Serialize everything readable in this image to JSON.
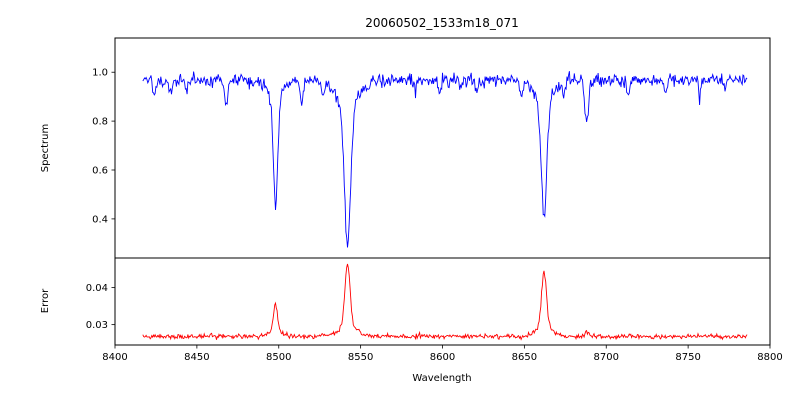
{
  "title": "20060502_1533m18_071",
  "axes": {
    "xlabel": "Wavelength",
    "spectrum_ylabel": "Spectrum",
    "error_ylabel": "Error"
  },
  "chart_data": {
    "type": "line",
    "title": "20060502_1533m18_071",
    "xlabel": "Wavelength",
    "xlim": [
      8400,
      8800
    ],
    "x_range_data": [
      8417,
      8786
    ],
    "step": 0.5,
    "seed": 20060502,
    "x_ticks": [
      8400,
      8450,
      8500,
      8550,
      8600,
      8650,
      8700,
      8750,
      8800
    ],
    "x_tick_labels": [
      "8400",
      "8450",
      "8500",
      "8550",
      "8600",
      "8650",
      "8700",
      "8750",
      "8800"
    ],
    "subplots": [
      {
        "name": "spectrum",
        "ylabel": "Spectrum",
        "color": "#0000ff",
        "ylim": [
          0.24,
          1.14
        ],
        "y_ticks": [
          0.4,
          0.6,
          0.8,
          1.0
        ],
        "y_tick_labels": [
          "0.4",
          "0.6",
          "0.8",
          "1.0"
        ],
        "continuum": 0.968,
        "noise_sigma": 0.013,
        "absorption_lines": [
          [
            8424,
            0.07,
            0.9
          ],
          [
            8434,
            0.05,
            0.8
          ],
          [
            8444,
            0.04,
            0.7
          ],
          [
            8468,
            0.09,
            0.9
          ],
          [
            8514,
            0.1,
            1.0
          ],
          [
            8527,
            0.05,
            0.8
          ],
          [
            8583,
            0.05,
            0.9
          ],
          [
            8598,
            0.05,
            0.8
          ],
          [
            8611,
            0.04,
            0.8
          ],
          [
            8621,
            0.05,
            0.8
          ],
          [
            8648,
            0.06,
            0.9
          ],
          [
            8674,
            0.05,
            0.8
          ],
          [
            8713,
            0.05,
            0.9
          ],
          [
            8736,
            0.05,
            0.8
          ],
          [
            8757,
            0.06,
            0.9
          ],
          [
            8772,
            0.04,
            0.8
          ],
          [
            8498,
            0.44,
            1.4
          ],
          [
            8498,
            0.07,
            4.5
          ],
          [
            8542,
            0.57,
            1.9
          ],
          [
            8542,
            0.1,
            7.0
          ],
          [
            8662,
            0.47,
            1.7
          ],
          [
            8662,
            0.08,
            6.0
          ],
          [
            8688,
            0.17,
            1.2
          ]
        ]
      },
      {
        "name": "error",
        "ylabel": "Error",
        "color": "#ff0000",
        "ylim": [
          0.0245,
          0.048
        ],
        "y_ticks": [
          0.03,
          0.04
        ],
        "y_tick_labels": [
          "0.03",
          "0.04"
        ],
        "baseline": 0.0268,
        "noise_sigma": 0.00032,
        "peaks": [
          [
            8498,
            0.0075,
            1.2
          ],
          [
            8498,
            0.0015,
            4.0
          ],
          [
            8542,
            0.017,
            1.6
          ],
          [
            8542,
            0.0025,
            6.0
          ],
          [
            8662,
            0.015,
            1.5
          ],
          [
            8662,
            0.0025,
            5.0
          ],
          [
            8688,
            0.0012,
            1.2
          ]
        ]
      }
    ]
  }
}
